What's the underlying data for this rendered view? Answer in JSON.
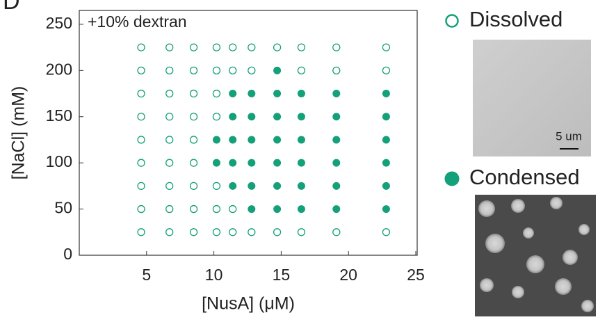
{
  "chart_data": {
    "type": "scatter",
    "panel_label": "D",
    "annotation": "+10% dextran",
    "xlabel": "[NusA] (μM)",
    "ylabel": "[NaCl] (mM)",
    "xlim": [
      0,
      25
    ],
    "ylim": [
      0,
      265
    ],
    "xticks": [
      5,
      10,
      15,
      20,
      25
    ],
    "yticks": [
      0,
      50,
      100,
      150,
      200,
      250
    ],
    "scale_bar_label": "5 um",
    "series": [
      {
        "name": "Dissolved",
        "color": "#14a07a",
        "filled": false,
        "x": [
          4.6,
          6.7,
          8.5,
          10.2,
          11.4,
          12.8,
          14.7,
          16.5,
          19.1,
          22.8,
          4.6,
          6.7,
          8.5,
          10.2,
          11.4,
          12.8,
          16.5,
          19.1,
          22.8,
          4.6,
          6.7,
          8.5,
          10.2,
          4.6,
          6.7,
          8.5,
          10.2,
          4.6,
          6.7,
          8.5,
          4.6,
          6.7,
          8.5,
          4.6,
          6.7,
          8.5,
          10.2,
          4.6,
          6.7,
          8.5,
          10.2,
          11.4,
          4.6,
          6.7,
          8.5,
          10.2,
          11.4,
          12.8,
          14.7,
          16.5,
          19.1,
          22.8
        ],
        "y": [
          225,
          225,
          225,
          225,
          225,
          225,
          225,
          225,
          225,
          225,
          200,
          200,
          200,
          200,
          200,
          200,
          200,
          200,
          200,
          175,
          175,
          175,
          175,
          150,
          150,
          150,
          150,
          125,
          125,
          125,
          100,
          100,
          100,
          75,
          75,
          75,
          75,
          50,
          50,
          50,
          50,
          50,
          25,
          25,
          25,
          25,
          25,
          25,
          25,
          25,
          25,
          25
        ]
      },
      {
        "name": "Condensed",
        "color": "#14a07a",
        "filled": true,
        "x": [
          14.7,
          11.4,
          12.8,
          14.7,
          16.5,
          19.1,
          22.8,
          11.4,
          12.8,
          14.7,
          16.5,
          19.1,
          22.8,
          10.2,
          11.4,
          12.8,
          14.7,
          16.5,
          19.1,
          22.8,
          10.2,
          11.4,
          12.8,
          14.7,
          16.5,
          19.1,
          22.8,
          11.4,
          12.8,
          14.7,
          16.5,
          19.1,
          22.8,
          12.8,
          14.7,
          16.5,
          19.1,
          22.8
        ],
        "y": [
          200,
          175,
          175,
          175,
          175,
          175,
          175,
          150,
          150,
          150,
          150,
          150,
          150,
          125,
          125,
          125,
          125,
          125,
          125,
          125,
          100,
          100,
          100,
          100,
          100,
          100,
          100,
          75,
          75,
          75,
          75,
          75,
          75,
          50,
          50,
          50,
          50,
          50
        ]
      }
    ]
  }
}
